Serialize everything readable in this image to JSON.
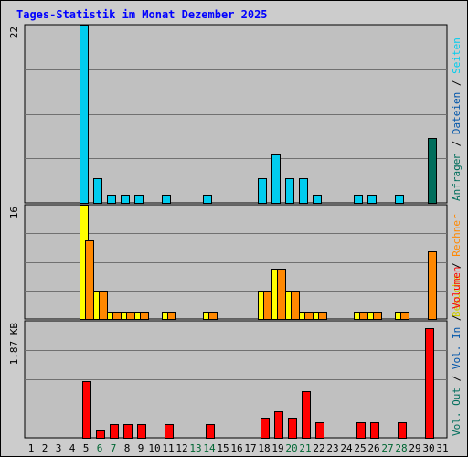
{
  "chart_data": {
    "type": "bar",
    "title": "Tages-Statistik im Monat Dezember 2025",
    "categories": [
      "1",
      "2",
      "3",
      "4",
      "5",
      "6",
      "7",
      "8",
      "9",
      "10",
      "11",
      "12",
      "13",
      "14",
      "15",
      "16",
      "17",
      "18",
      "19",
      "20",
      "21",
      "22",
      "23",
      "24",
      "25",
      "26",
      "27",
      "28",
      "29",
      "30",
      "31"
    ],
    "weekend_days": [
      6,
      7,
      13,
      14,
      20,
      21,
      27,
      28
    ],
    "colors": {
      "title": "#0000ff",
      "weekday_label": "#000000",
      "weekend_label": "#006633",
      "plot_bg": "#c0c0c0",
      "frame_bg": "#cccccc",
      "anfragen": "#006e5c",
      "dateien": "#0055aa",
      "seiten": "#00ccee",
      "besuche": "#ffff00",
      "rechner": "#ff8800",
      "vol_out": "#006e5c",
      "vol_in": "#0055aa",
      "volumen": "#ff0000"
    },
    "panels": [
      {
        "id": "top",
        "scale_label": "22",
        "ymax": 22,
        "legend": [
          {
            "text": "Anfragen",
            "color": "#006e5c"
          },
          {
            "text": "/",
            "color": "#000000"
          },
          {
            "text": "Dateien",
            "color": "#0055aa"
          },
          {
            "text": "/",
            "color": "#000000"
          },
          {
            "text": "Seiten",
            "color": "#00ccee"
          }
        ],
        "series": [
          {
            "name": "Seiten",
            "color": "#00ccee",
            "values": [
              0,
              0,
              0,
              0,
              22,
              3,
              1,
              1,
              1,
              0,
              1,
              0,
              0,
              1,
              0,
              0,
              0,
              3,
              6,
              3,
              3,
              1,
              0,
              0,
              1,
              1,
              0,
              1,
              0,
              0,
              0
            ]
          },
          {
            "name": "Anfragen",
            "color": "#006e5c",
            "values": [
              0,
              0,
              0,
              0,
              0,
              0,
              0,
              0,
              0,
              0,
              0,
              0,
              0,
              0,
              0,
              0,
              0,
              0,
              0,
              0,
              0,
              0,
              0,
              0,
              0,
              0,
              0,
              0,
              0,
              8,
              0
            ]
          }
        ]
      },
      {
        "id": "middle",
        "scale_label": "16",
        "ymax": 16,
        "legend": [
          {
            "text": "Besuche",
            "color": "#cccc00"
          },
          {
            "text": "/",
            "color": "#000000"
          },
          {
            "text": "Rechner",
            "color": "#ff8800"
          }
        ],
        "series": [
          {
            "name": "Besuche",
            "color": "#ffff00",
            "values": [
              0,
              0,
              0,
              0,
              16,
              4,
              1,
              1,
              1,
              0,
              1,
              0,
              0,
              1,
              0,
              0,
              0,
              4,
              7,
              4,
              1,
              1,
              0,
              0,
              1,
              1,
              0,
              1,
              0,
              0,
              0
            ]
          },
          {
            "name": "Rechner",
            "color": "#ff8800",
            "values": [
              0,
              0,
              0,
              0,
              11,
              4,
              1,
              1,
              1,
              0,
              1,
              0,
              0,
              1,
              0,
              0,
              0,
              4,
              7,
              4,
              1,
              1,
              0,
              0,
              1,
              1,
              0,
              1,
              0,
              9.5,
              0
            ]
          }
        ]
      },
      {
        "id": "bottom",
        "scale_label": "1.87 KB",
        "ymax": 1.87,
        "legend": [
          {
            "text": "Vol. Out",
            "color": "#006e5c"
          },
          {
            "text": "/",
            "color": "#000000"
          },
          {
            "text": "Vol. In",
            "color": "#0055aa"
          },
          {
            "text": "/",
            "color": "#000000"
          },
          {
            "text": "Volumen",
            "color": "#ff0000"
          }
        ],
        "series": [
          {
            "name": "Volumen",
            "color": "#ff0000",
            "values": [
              0,
              0,
              0,
              0,
              0.9,
              0.12,
              0.22,
              0.22,
              0.22,
              0,
              0.22,
              0,
              0,
              0.22,
              0,
              0,
              0,
              0.32,
              0.42,
              0.32,
              0.75,
              0.25,
              0,
              0,
              0.25,
              0.25,
              0,
              0.25,
              0,
              1.75,
              0
            ]
          }
        ]
      }
    ]
  }
}
